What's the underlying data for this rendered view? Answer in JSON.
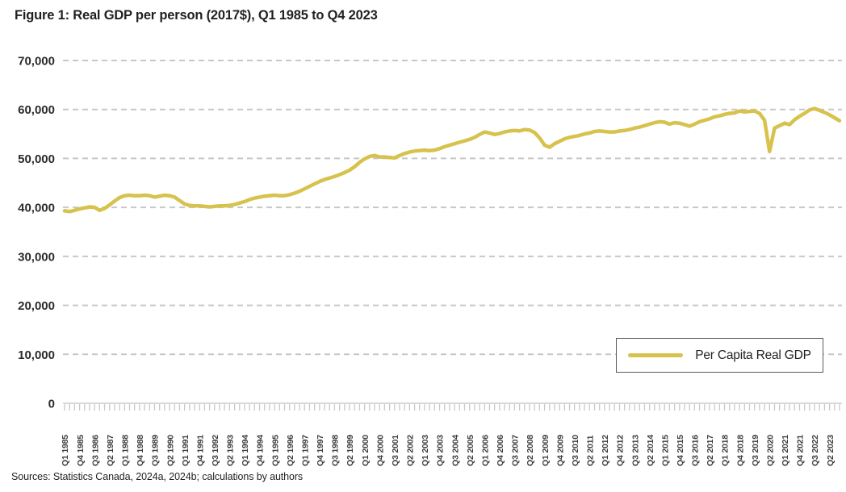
{
  "figure": {
    "title": "Figure 1: Real GDP per person (2017$), Q1 1985 to Q4 2023",
    "source_note": "Sources: Statistics Canada, 2024a, 2024b; calculations by authors"
  },
  "legend": {
    "label": "Per Capita Real GDP"
  },
  "colors": {
    "line": "#d7c24d",
    "gridline": "#c7c7c7",
    "axis_line": "#d8d8d8",
    "tick_mark": "#c9c9c9",
    "y_label_text": "#2b2b2b",
    "x_label_text": "#3d3d3d",
    "title_text": "#231f20"
  },
  "chart_data": {
    "type": "line",
    "title": "Figure 1: Real GDP per person (2017$), Q1 1985 to Q4 2023",
    "xlabel": "",
    "ylabel": "",
    "ylim": [
      0,
      70000
    ],
    "grid": "horizontal-dashed",
    "legend_position": "inside-lower-right",
    "x_frequency": "quarterly",
    "x_start": "Q1 1985",
    "x_end": "Q4 2023",
    "x_tick_every_n_quarters": 3,
    "x_tick_labels": [
      "Q1 1985",
      "Q4 1985",
      "Q3 1986",
      "Q2 1987",
      "Q1 1988",
      "Q4 1988",
      "Q3 1989",
      "Q2 1990",
      "Q1 1991",
      "Q4 1991",
      "Q3 1992",
      "Q2 1993",
      "Q1 1994",
      "Q4 1994",
      "Q3 1995",
      "Q2 1996",
      "Q1 1997",
      "Q4 1997",
      "Q3 1998",
      "Q2 1999",
      "Q1 2000",
      "Q4 2000",
      "Q3 2001",
      "Q2 2002",
      "Q1 2003",
      "Q4 2003",
      "Q3 2004",
      "Q2 2005",
      "Q1 2006",
      "Q4 2006",
      "Q3 2007",
      "Q2 2008",
      "Q1 2009",
      "Q4 2009",
      "Q3 2010",
      "Q2 2011",
      "Q1 2012",
      "Q4 2012",
      "Q3 2013",
      "Q2 2014",
      "Q1 2015",
      "Q4 2015",
      "Q3 2016",
      "Q2 2017",
      "Q1 2018",
      "Q4 2018",
      "Q3 2019",
      "Q2 2020",
      "Q1 2021",
      "Q4 2021",
      "Q3 2022",
      "Q2 2023"
    ],
    "y_ticks": [
      0,
      10000,
      20000,
      30000,
      40000,
      50000,
      60000,
      70000
    ],
    "y_tick_labels": [
      "0",
      "10,000",
      "20,000",
      "30,000",
      "40,000",
      "50,000",
      "60,000",
      "70,000"
    ],
    "series": [
      {
        "name": "Per Capita Real GDP",
        "values": [
          39300,
          39150,
          39400,
          39700,
          39900,
          40100,
          40000,
          39400,
          39800,
          40500,
          41300,
          42000,
          42400,
          42500,
          42400,
          42400,
          42500,
          42400,
          42100,
          42300,
          42500,
          42400,
          42100,
          41400,
          40700,
          40400,
          40300,
          40300,
          40200,
          40100,
          40200,
          40300,
          40300,
          40400,
          40600,
          40900,
          41200,
          41600,
          41900,
          42100,
          42300,
          42400,
          42500,
          42400,
          42400,
          42600,
          42900,
          43300,
          43800,
          44300,
          44800,
          45300,
          45700,
          46000,
          46300,
          46700,
          47100,
          47600,
          48300,
          49200,
          49900,
          50400,
          50600,
          50300,
          50300,
          50200,
          50100,
          50600,
          51000,
          51300,
          51500,
          51600,
          51700,
          51600,
          51700,
          52000,
          52400,
          52700,
          53000,
          53300,
          53600,
          53900,
          54300,
          54900,
          55400,
          55200,
          54900,
          55100,
          55400,
          55600,
          55700,
          55600,
          55900,
          55800,
          55300,
          54200,
          52700,
          52300,
          53000,
          53500,
          54000,
          54300,
          54500,
          54700,
          55000,
          55200,
          55500,
          55600,
          55500,
          55400,
          55400,
          55600,
          55700,
          55900,
          56200,
          56400,
          56700,
          57000,
          57300,
          57500,
          57400,
          57000,
          57300,
          57200,
          56900,
          56600,
          57000,
          57500,
          57800,
          58100,
          58500,
          58700,
          59000,
          59200,
          59300,
          59700,
          59500,
          59600,
          59700,
          59200,
          57800,
          51400,
          56200,
          56700,
          57200,
          56900,
          57900,
          58600,
          59200,
          59900,
          60200,
          59800,
          59400,
          58900,
          58300,
          57700
        ]
      }
    ]
  }
}
